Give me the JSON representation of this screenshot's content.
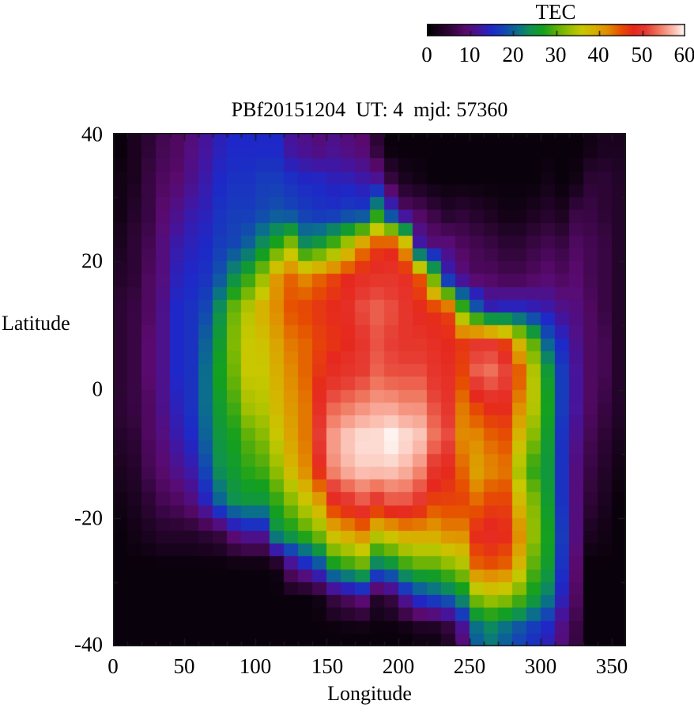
{
  "window": {
    "background": "#ffffff"
  },
  "colorbar": {
    "title": "TEC",
    "tick_labels": [
      "0",
      "10",
      "20",
      "30",
      "40",
      "50",
      "60"
    ],
    "range": [
      0,
      60
    ]
  },
  "chart_data": {
    "type": "heatmap",
    "title": "PBf20151204  UT: 4  mjd: 57360",
    "xlabel": "Longitude",
    "ylabel": "Latitude",
    "xlim": [
      0,
      360
    ],
    "ylim": [
      -40,
      40
    ],
    "xtick_labels": [
      "0",
      "50",
      "100",
      "150",
      "200",
      "250",
      "300",
      "350"
    ],
    "ytick_labels": [
      "40",
      "20",
      "0",
      "-20",
      "-40"
    ],
    "x_minor_step_deg": 10,
    "y_minor_step_deg": 10,
    "colorbar_title": "TEC",
    "value_range": [
      0,
      60
    ],
    "grid": {
      "lon_center_start_deg": 5,
      "lon_center_step_deg": 10,
      "n_lon": 36,
      "lat_center_start_deg": 37.5,
      "lat_center_step_deg": -5,
      "n_lat": 16,
      "values_rows_top_to_bottom": [
        [
          1,
          3,
          5,
          7,
          8,
          10,
          12,
          14,
          15,
          15,
          15,
          15,
          12,
          11,
          10,
          11,
          10,
          9,
          5,
          1,
          1,
          1,
          1,
          1,
          1,
          1,
          1,
          1,
          1,
          1,
          1,
          1,
          1,
          2,
          3,
          3
        ],
        [
          2,
          3,
          6,
          8,
          9,
          11,
          13,
          15,
          16,
          16,
          17,
          17,
          16,
          15,
          15,
          14,
          14,
          13,
          12,
          6,
          3,
          2,
          1,
          1,
          1,
          1,
          1,
          1,
          1,
          1,
          2,
          1,
          2,
          5,
          5,
          4
        ],
        [
          2,
          4,
          6,
          9,
          11,
          13,
          14,
          16,
          17,
          17,
          18,
          19,
          18,
          17,
          16,
          16,
          17,
          17,
          26,
          16,
          9,
          8,
          6,
          4,
          5,
          4,
          3,
          2,
          2,
          3,
          4,
          3,
          6,
          6,
          5,
          4
        ],
        [
          3,
          5,
          7,
          10,
          13,
          14,
          15,
          17,
          18,
          20,
          24,
          28,
          33,
          24,
          26,
          30,
          35,
          42,
          46,
          47,
          40,
          13,
          10,
          10,
          8,
          7,
          6,
          5,
          5,
          6,
          7,
          6,
          8,
          7,
          6,
          4
        ],
        [
          4,
          5,
          8,
          10,
          14,
          15,
          16,
          19,
          24,
          28,
          33,
          41,
          44,
          42,
          44,
          46,
          48,
          49,
          50,
          50,
          49,
          45,
          30,
          14,
          10,
          8,
          8,
          7,
          7,
          8,
          9,
          8,
          9,
          7,
          6,
          4
        ],
        [
          5,
          6,
          8,
          11,
          15,
          16,
          18,
          24,
          31,
          35,
          39,
          42,
          45,
          46,
          47,
          48,
          49,
          52,
          53,
          52,
          50,
          48,
          47,
          46,
          30,
          20,
          14,
          15,
          15,
          14,
          13,
          11,
          10,
          8,
          6,
          4
        ],
        [
          5,
          6,
          9,
          11,
          15,
          16,
          20,
          26,
          32,
          36,
          37,
          40,
          43,
          44,
          46,
          47,
          48,
          50,
          52,
          51,
          50,
          50,
          49,
          48,
          47,
          50,
          50,
          46,
          38,
          30,
          20,
          15,
          11,
          8,
          7,
          4
        ],
        [
          5,
          6,
          9,
          11,
          15,
          16,
          21,
          27,
          31,
          36,
          36,
          39,
          42,
          44,
          47,
          49,
          50,
          51,
          53,
          52,
          52,
          52,
          50,
          49,
          46,
          53,
          54,
          52,
          45,
          35,
          26,
          17,
          12,
          8,
          7,
          4
        ],
        [
          5,
          6,
          8,
          11,
          14,
          16,
          21,
          26,
          29,
          34,
          35,
          38,
          41,
          43,
          49,
          53,
          54,
          55,
          56,
          56,
          55,
          55,
          52,
          50,
          43,
          46,
          48,
          48,
          42,
          35,
          27,
          17,
          12,
          8,
          6,
          4
        ],
        [
          4,
          5,
          8,
          10,
          13,
          15,
          20,
          25,
          27,
          30,
          32,
          36,
          40,
          43,
          51,
          56,
          58,
          59,
          59,
          60,
          59,
          58,
          54,
          52,
          42,
          42,
          44,
          45,
          38,
          32,
          26,
          16,
          11,
          7,
          5,
          3
        ],
        [
          3,
          4,
          7,
          9,
          11,
          13,
          18,
          24,
          26,
          28,
          29,
          33,
          38,
          42,
          48,
          55,
          57,
          58,
          58,
          58,
          57,
          55,
          50,
          48,
          44,
          40,
          42,
          43,
          34,
          28,
          25,
          16,
          10,
          6,
          4,
          2
        ],
        [
          2,
          3,
          5,
          7,
          8,
          10,
          14,
          20,
          24,
          25,
          25,
          28,
          32,
          36,
          40,
          48,
          50,
          52,
          50,
          52,
          52,
          50,
          46,
          46,
          46,
          44,
          46,
          46,
          38,
          32,
          26,
          16,
          10,
          5,
          3,
          1
        ],
        [
          1,
          2,
          3,
          4,
          4,
          4,
          5,
          6,
          10,
          12,
          12,
          24,
          26,
          29,
          32,
          38,
          40,
          42,
          36,
          38,
          40,
          40,
          40,
          42,
          42,
          48,
          49,
          48,
          42,
          33,
          27,
          17,
          10,
          3,
          2,
          1
        ],
        [
          1,
          1,
          1,
          1,
          1,
          1,
          1,
          1,
          1,
          1,
          1,
          2,
          10,
          14,
          18,
          26,
          28,
          30,
          22,
          24,
          28,
          30,
          30,
          32,
          34,
          44,
          45,
          44,
          38,
          30,
          26,
          16,
          9,
          1,
          1,
          1
        ],
        [
          1,
          1,
          1,
          1,
          1,
          1,
          1,
          1,
          1,
          1,
          1,
          1,
          1,
          1,
          2,
          6,
          8,
          10,
          4,
          6,
          12,
          16,
          18,
          20,
          24,
          32,
          34,
          33,
          30,
          26,
          22,
          14,
          8,
          1,
          1,
          1
        ],
        [
          1,
          1,
          1,
          1,
          1,
          1,
          1,
          1,
          1,
          1,
          1,
          1,
          1,
          1,
          1,
          1,
          1,
          1,
          1,
          1,
          1,
          2,
          2,
          4,
          10,
          20,
          22,
          20,
          18,
          16,
          14,
          10,
          6,
          1,
          1,
          1
        ]
      ]
    },
    "colormap_stops": [
      [
        0,
        "#000000"
      ],
      [
        5,
        "#2d0535"
      ],
      [
        9,
        "#5a0a6e"
      ],
      [
        12,
        "#46149b"
      ],
      [
        15,
        "#1e28c8"
      ],
      [
        18,
        "#1446b4"
      ],
      [
        21,
        "#0a6e8c"
      ],
      [
        24,
        "#0f9150"
      ],
      [
        27,
        "#14a01e"
      ],
      [
        30,
        "#5aaf0a"
      ],
      [
        33,
        "#96be00"
      ],
      [
        36,
        "#c8c800"
      ],
      [
        39,
        "#d7af00"
      ],
      [
        42,
        "#e18c00"
      ],
      [
        45,
        "#e65000"
      ],
      [
        48,
        "#e6281e"
      ],
      [
        51,
        "#e63c32"
      ],
      [
        54,
        "#f0785f"
      ],
      [
        57,
        "#fab4a5"
      ],
      [
        59,
        "#fde2da"
      ],
      [
        60,
        "#ffffff"
      ]
    ],
    "frame_color": "#1a1a1a"
  }
}
